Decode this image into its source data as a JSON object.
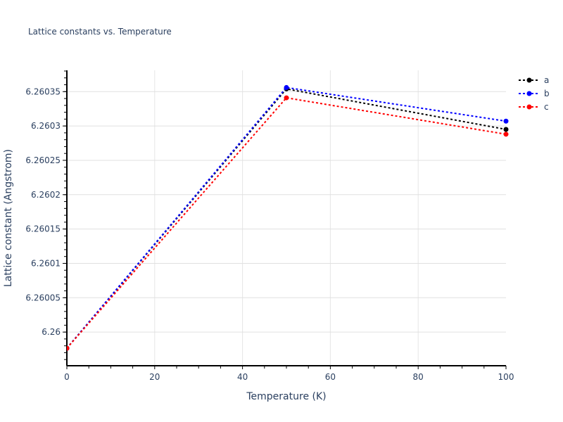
{
  "chart_data": {
    "type": "line",
    "title": "Lattice constants vs. Temperature",
    "xlabel": "Temperature (K)",
    "ylabel": "Lattice constant (Angstrom)",
    "x": [
      0,
      50,
      100
    ],
    "series": [
      {
        "name": "a",
        "color": "#000000",
        "values": [
          6.2599765,
          6.260354,
          6.260295
        ]
      },
      {
        "name": "b",
        "color": "#0000ff",
        "values": [
          6.2599765,
          6.260356,
          6.260307
        ]
      },
      {
        "name": "c",
        "color": "#ff0000",
        "values": [
          6.2599765,
          6.260341,
          6.260288
        ]
      }
    ],
    "xlim": [
      0,
      100
    ],
    "ylim": [
      6.259951,
      6.260381
    ],
    "x_ticks": [
      "0",
      "20",
      "40",
      "60",
      "80",
      "100"
    ],
    "y_ticks": [
      "6.26",
      "6.26005",
      "6.2601",
      "6.26015",
      "6.2602",
      "6.26025",
      "6.2603",
      "6.26035"
    ],
    "grid": true,
    "legend_position": "top-right",
    "line_style": "dotted",
    "markers": true
  },
  "legend": {
    "items": [
      {
        "label": "a",
        "color": "#000000"
      },
      {
        "label": "b",
        "color": "#0000ff"
      },
      {
        "label": "c",
        "color": "#ff0000"
      }
    ]
  }
}
